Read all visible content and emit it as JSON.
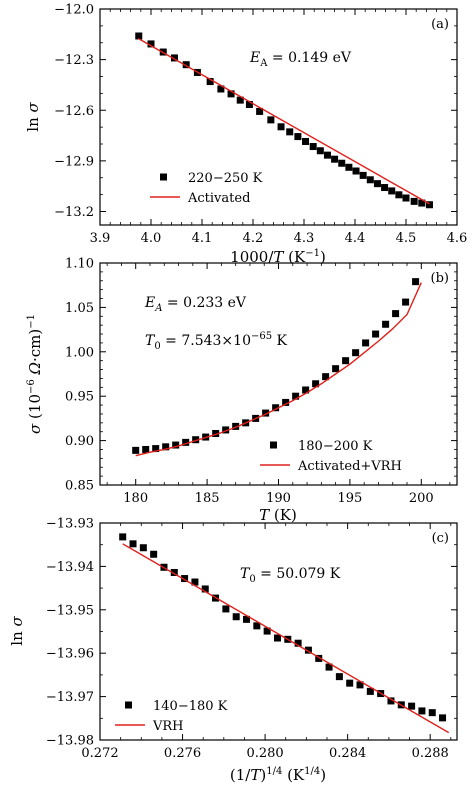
{
  "chart_data": [
    {
      "type": "scatter",
      "panel_label": "(a)",
      "xlabel": "1000/T (K⁻¹)",
      "ylabel": "ln σ",
      "xlim": [
        3.9,
        4.6
      ],
      "ylim": [
        -13.28,
        -12.0
      ],
      "xticks": [
        3.9,
        4.0,
        4.1,
        4.2,
        4.3,
        4.4,
        4.5,
        4.6
      ],
      "xtick_labels": [
        "3.9",
        "4.0",
        "4.1",
        "4.2",
        "4.3",
        "4.4",
        "4.5",
        "4.6"
      ],
      "yticks": [
        -12.0,
        -12.3,
        -12.6,
        -12.9,
        -13.2
      ],
      "ytick_labels": [
        "−12.0",
        "−12.3",
        "−12.6",
        "−12.9",
        "−13.2"
      ],
      "annotation": "E_A = 0.149 eV",
      "legend": {
        "placement": "bottom-left",
        "points_label": "220−250 K",
        "line_label": "Activated"
      },
      "colors": {
        "points": "#000000",
        "fit": "#e0201b"
      },
      "series": [
        {
          "name": "220−250 K",
          "kind": "points",
          "x": [
            3.976,
            4.0,
            4.024,
            4.046,
            4.069,
            4.091,
            4.116,
            4.137,
            4.157,
            4.175,
            4.193,
            4.213,
            4.235,
            4.255,
            4.272,
            4.288,
            4.303,
            4.318,
            4.332,
            4.346,
            4.36,
            4.374,
            4.388,
            4.402,
            4.416,
            4.43,
            4.444,
            4.458,
            4.472,
            4.486,
            4.5,
            4.516,
            4.531,
            4.546
          ],
          "y": [
            -12.16,
            -12.207,
            -12.255,
            -12.29,
            -12.33,
            -12.376,
            -12.43,
            -12.474,
            -12.503,
            -12.54,
            -12.566,
            -12.607,
            -12.657,
            -12.698,
            -12.728,
            -12.756,
            -12.785,
            -12.815,
            -12.84,
            -12.866,
            -12.89,
            -12.914,
            -12.938,
            -12.96,
            -12.986,
            -13.012,
            -13.035,
            -13.058,
            -13.078,
            -13.101,
            -13.12,
            -13.14,
            -13.15,
            -13.16
          ]
        },
        {
          "name": "Activated",
          "kind": "line",
          "x": [
            3.975,
            4.546
          ],
          "y": [
            -12.175,
            -13.155
          ]
        }
      ]
    },
    {
      "type": "scatter",
      "panel_label": "(b)",
      "xlabel": "T (K)",
      "ylabel": "σ (10⁻⁶ Ω·cm)⁻¹",
      "xlim": [
        177.5,
        202.5
      ],
      "ylim": [
        0.85,
        1.1
      ],
      "xticks": [
        180,
        185,
        190,
        195,
        200
      ],
      "xtick_labels": [
        "180",
        "185",
        "190",
        "195",
        "200"
      ],
      "yticks": [
        0.85,
        0.9,
        0.95,
        1.0,
        1.05,
        1.1
      ],
      "ytick_labels": [
        "0.85",
        "0.90",
        "0.95",
        "1.00",
        "1.05",
        "1.10"
      ],
      "annotation_1": "E_A = 0.233 eV",
      "annotation_2": "T₀ = 7.543×10⁻⁶⁵ K",
      "legend": {
        "placement": "bottom-right",
        "points_label": "180−200 K",
        "line_label": "Activated+VRH"
      },
      "colors": {
        "points": "#000000",
        "fit": "#e0201b"
      },
      "series": [
        {
          "name": "180−200 K",
          "kind": "points",
          "x": [
            180,
            180.7,
            181.4,
            182.1,
            182.8,
            183.5,
            184.2,
            184.9,
            185.6,
            186.3,
            187.0,
            187.7,
            188.4,
            189.1,
            189.8,
            190.5,
            191.2,
            191.9,
            192.6,
            193.3,
            194.0,
            194.7,
            195.4,
            196.1,
            196.8,
            197.5,
            198.2,
            198.9,
            199.6
          ],
          "y": [
            0.889,
            0.89,
            0.891,
            0.893,
            0.895,
            0.898,
            0.901,
            0.904,
            0.908,
            0.912,
            0.916,
            0.92,
            0.925,
            0.931,
            0.937,
            0.943,
            0.95,
            0.957,
            0.964,
            0.972,
            0.981,
            0.99,
            0.999,
            1.01,
            1.02,
            1.031,
            1.043,
            1.056,
            1.079
          ]
        },
        {
          "name": "Activated+VRH",
          "kind": "line",
          "x": [
            180,
            181,
            182,
            183,
            184,
            185,
            186,
            187,
            188,
            189,
            190,
            191,
            192,
            193,
            194,
            195,
            196,
            197,
            198,
            199,
            200
          ],
          "y": [
            0.883,
            0.887,
            0.89,
            0.894,
            0.899,
            0.904,
            0.909,
            0.915,
            0.922,
            0.929,
            0.937,
            0.945,
            0.954,
            0.964,
            0.975,
            0.986,
            0.999,
            1.012,
            1.026,
            1.042,
            1.078
          ]
        }
      ]
    },
    {
      "type": "scatter",
      "panel_label": "(c)",
      "xlabel": "(1/T)^(1/4) (K^(1/4))",
      "ylabel": "ln σ",
      "xlim": [
        0.272,
        0.2893
      ],
      "ylim": [
        -13.98,
        -13.93
      ],
      "xticks": [
        0.272,
        0.276,
        0.28,
        0.284,
        0.288
      ],
      "xtick_labels": [
        "0.272",
        "0.276",
        "0.280",
        "0.284",
        "0.288"
      ],
      "yticks": [
        -13.93,
        -13.94,
        -13.95,
        -13.96,
        -13.97,
        -13.98
      ],
      "ytick_labels": [
        "−13.93",
        "−13.94",
        "−13.95",
        "−13.96",
        "−13.97",
        "−13.98"
      ],
      "annotation": "T₀ = 50.079 K",
      "legend": {
        "placement": "bottom-left",
        "points_label": "140−180 K",
        "line_label": "VRH"
      },
      "colors": {
        "points": "#000000",
        "fit": "#e0201b"
      },
      "series": [
        {
          "name": "140−180 K",
          "kind": "points",
          "x": [
            0.2731,
            0.2736,
            0.2741,
            0.2746,
            0.2751,
            0.2756,
            0.2761,
            0.2766,
            0.2771,
            0.2776,
            0.2781,
            0.2786,
            0.2791,
            0.2796,
            0.2801,
            0.2806,
            0.2811,
            0.2816,
            0.2821,
            0.2826,
            0.2831,
            0.2836,
            0.2841,
            0.2846,
            0.2851,
            0.2856,
            0.2861,
            0.2866,
            0.2871,
            0.2876,
            0.2881,
            0.2886
          ],
          "y": [
            -13.9332,
            -13.9348,
            -13.9357,
            -13.9372,
            -13.9402,
            -13.9414,
            -13.9428,
            -13.9436,
            -13.9452,
            -13.9473,
            -13.9498,
            -13.9516,
            -13.9522,
            -13.9537,
            -13.9549,
            -13.9565,
            -13.9568,
            -13.9577,
            -13.9593,
            -13.9612,
            -13.9632,
            -13.9654,
            -13.9669,
            -13.9673,
            -13.9688,
            -13.9693,
            -13.971,
            -13.9719,
            -13.9722,
            -13.9733,
            -13.9737,
            -13.9749
          ]
        },
        {
          "name": "VRH",
          "kind": "line",
          "x": [
            0.2731,
            0.2889
          ],
          "y": [
            -13.9348,
            -13.9783
          ]
        }
      ]
    }
  ]
}
